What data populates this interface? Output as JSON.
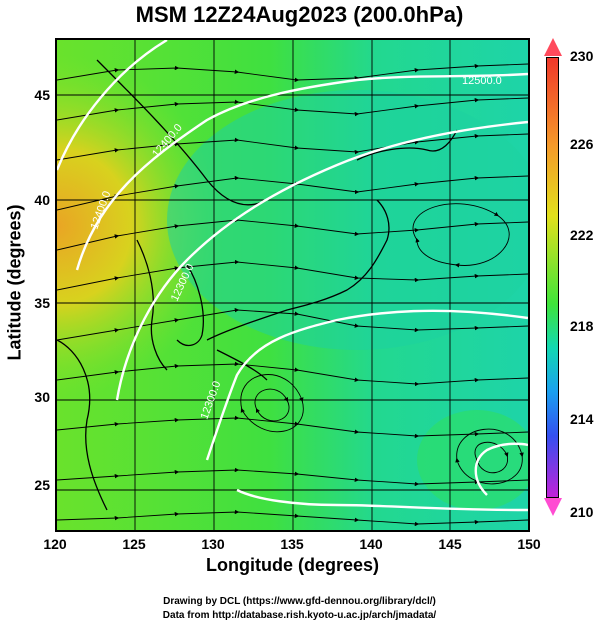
{
  "title": "MSM 12Z24Aug2023 (200.0hPa)",
  "x_axis": {
    "label": "Longitude (degrees)",
    "ticks": [
      "120",
      "125",
      "130",
      "135",
      "140",
      "145",
      "150"
    ],
    "range": [
      120,
      150
    ]
  },
  "y_axis": {
    "label": "Latitude  (degrees)",
    "ticks": [
      "45",
      "40",
      "35",
      "30",
      "25"
    ],
    "range": [
      22.4,
      47.6
    ]
  },
  "colorbar": {
    "ticks": [
      "230",
      "226",
      "222",
      "218",
      "214",
      "210"
    ],
    "range": [
      210,
      230
    ]
  },
  "contour_labels": [
    "12500.0",
    "12400.0",
    "12300.0",
    "12300.0",
    "12400.0"
  ],
  "credits": {
    "line1": "Drawing by DCL (https://www.gfd-dennou.org/library/dcl/)",
    "line2": "Data from http://database.rish.kyoto-u.ac.jp/arch/jmadata/"
  }
}
